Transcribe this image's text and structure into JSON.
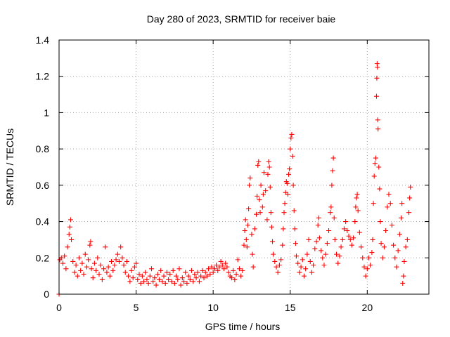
{
  "chart_data": {
    "type": "scatter",
    "title": "Day 280 of 2023, SRMTID for receiver baie",
    "xlabel": "GPS time / hours",
    "ylabel": "SRMTID / TECUs",
    "xlim": [
      0,
      24
    ],
    "ylim": [
      0,
      1.4
    ],
    "xticks": [
      0,
      5,
      10,
      15,
      20
    ],
    "xtick_labels": [
      "0",
      "5",
      "10",
      "15",
      "20"
    ],
    "yticks": [
      0,
      0.2,
      0.4,
      0.6,
      0.8,
      1.0,
      1.2,
      1.4
    ],
    "ytick_labels": [
      "0",
      "0.2",
      "0.4",
      "0.6",
      "0.8",
      "1",
      "1.2",
      "1.4"
    ],
    "grid": true,
    "marker": "+",
    "series_color": "#ff0000",
    "series": [
      {
        "name": "SRMTID",
        "points": [
          [
            0.0,
            0.0
          ],
          [
            0.05,
            0.19
          ],
          [
            0.15,
            0.2
          ],
          [
            0.25,
            0.17
          ],
          [
            0.35,
            0.21
          ],
          [
            0.45,
            0.14
          ],
          [
            0.55,
            0.26
          ],
          [
            0.65,
            0.33
          ],
          [
            0.7,
            0.37
          ],
          [
            0.75,
            0.41
          ],
          [
            0.8,
            0.3
          ],
          [
            0.9,
            0.18
          ],
          [
            1.0,
            0.12
          ],
          [
            1.1,
            0.16
          ],
          [
            1.2,
            0.1
          ],
          [
            1.3,
            0.2
          ],
          [
            1.4,
            0.13
          ],
          [
            1.5,
            0.17
          ],
          [
            1.6,
            0.11
          ],
          [
            1.7,
            0.22
          ],
          [
            1.8,
            0.15
          ],
          [
            1.9,
            0.19
          ],
          [
            2.0,
            0.27
          ],
          [
            2.05,
            0.29
          ],
          [
            2.1,
            0.14
          ],
          [
            2.2,
            0.09
          ],
          [
            2.3,
            0.17
          ],
          [
            2.4,
            0.13
          ],
          [
            2.5,
            0.2
          ],
          [
            2.6,
            0.11
          ],
          [
            2.7,
            0.16
          ],
          [
            2.8,
            0.08
          ],
          [
            2.9,
            0.14
          ],
          [
            3.0,
            0.26
          ],
          [
            3.1,
            0.12
          ],
          [
            3.2,
            0.15
          ],
          [
            3.3,
            0.1
          ],
          [
            3.4,
            0.18
          ],
          [
            3.5,
            0.13
          ],
          [
            3.6,
            0.16
          ],
          [
            3.7,
            0.19
          ],
          [
            3.8,
            0.22
          ],
          [
            3.9,
            0.18
          ],
          [
            4.0,
            0.26
          ],
          [
            4.1,
            0.2
          ],
          [
            4.2,
            0.16
          ],
          [
            4.3,
            0.12
          ],
          [
            4.4,
            0.18
          ],
          [
            4.5,
            0.1
          ],
          [
            4.6,
            0.07
          ],
          [
            4.7,
            0.13
          ],
          [
            4.8,
            0.09
          ],
          [
            4.9,
            0.15
          ],
          [
            5.0,
            0.17
          ],
          [
            5.1,
            0.08
          ],
          [
            5.2,
            0.11
          ],
          [
            5.3,
            0.06
          ],
          [
            5.4,
            0.1
          ],
          [
            5.5,
            0.07
          ],
          [
            5.6,
            0.12
          ],
          [
            5.7,
            0.08
          ],
          [
            5.8,
            0.06
          ],
          [
            5.9,
            0.1
          ],
          [
            6.0,
            0.14
          ],
          [
            6.1,
            0.07
          ],
          [
            6.2,
            0.09
          ],
          [
            6.3,
            0.05
          ],
          [
            6.4,
            0.11
          ],
          [
            6.5,
            0.08
          ],
          [
            6.6,
            0.13
          ],
          [
            6.7,
            0.07
          ],
          [
            6.8,
            0.1
          ],
          [
            6.9,
            0.06
          ],
          [
            7.0,
            0.12
          ],
          [
            7.1,
            0.08
          ],
          [
            7.2,
            0.11
          ],
          [
            7.3,
            0.07
          ],
          [
            7.4,
            0.13
          ],
          [
            7.5,
            0.06
          ],
          [
            7.6,
            0.1
          ],
          [
            7.7,
            0.08
          ],
          [
            7.8,
            0.14
          ],
          [
            7.9,
            0.05
          ],
          [
            8.0,
            0.09
          ],
          [
            8.1,
            0.07
          ],
          [
            8.2,
            0.12
          ],
          [
            8.3,
            0.06
          ],
          [
            8.4,
            0.1
          ],
          [
            8.5,
            0.08
          ],
          [
            8.6,
            0.13
          ],
          [
            8.7,
            0.07
          ],
          [
            8.8,
            0.11
          ],
          [
            8.9,
            0.09
          ],
          [
            9.0,
            0.12
          ],
          [
            9.1,
            0.07
          ],
          [
            9.2,
            0.1
          ],
          [
            9.3,
            0.13
          ],
          [
            9.4,
            0.09
          ],
          [
            9.5,
            0.12
          ],
          [
            9.6,
            0.1
          ],
          [
            9.7,
            0.14
          ],
          [
            9.8,
            0.11
          ],
          [
            9.9,
            0.15
          ],
          [
            10.0,
            0.12
          ],
          [
            10.1,
            0.14
          ],
          [
            10.2,
            0.16
          ],
          [
            10.3,
            0.13
          ],
          [
            10.4,
            0.15
          ],
          [
            10.5,
            0.18
          ],
          [
            10.6,
            0.16
          ],
          [
            10.7,
            0.14
          ],
          [
            10.8,
            0.17
          ],
          [
            10.9,
            0.15
          ],
          [
            11.0,
            0.12
          ],
          [
            11.1,
            0.1
          ],
          [
            11.2,
            0.09
          ],
          [
            11.3,
            0.13
          ],
          [
            11.4,
            0.08
          ],
          [
            11.5,
            0.11
          ],
          [
            11.6,
            0.19
          ],
          [
            11.7,
            0.14
          ],
          [
            11.8,
            0.1
          ],
          [
            11.9,
            0.13
          ],
          [
            12.0,
            0.27
          ],
          [
            12.05,
            0.35
          ],
          [
            12.1,
            0.41
          ],
          [
            12.15,
            0.3
          ],
          [
            12.2,
            0.26
          ],
          [
            12.25,
            0.38
          ],
          [
            12.3,
            0.47
          ],
          [
            12.35,
            0.6
          ],
          [
            12.4,
            0.64
          ],
          [
            12.5,
            0.33
          ],
          [
            12.55,
            0.22
          ],
          [
            12.6,
            0.15
          ],
          [
            12.7,
            0.36
          ],
          [
            12.8,
            0.44
          ],
          [
            12.85,
            0.54
          ],
          [
            12.9,
            0.71
          ],
          [
            12.95,
            0.73
          ],
          [
            13.0,
            0.52
          ],
          [
            13.05,
            0.45
          ],
          [
            13.1,
            0.6
          ],
          [
            13.2,
            0.48
          ],
          [
            13.25,
            0.55
          ],
          [
            13.3,
            0.67
          ],
          [
            13.4,
            0.57
          ],
          [
            13.5,
            0.41
          ],
          [
            13.55,
            0.66
          ],
          [
            13.6,
            0.73
          ],
          [
            13.65,
            0.7
          ],
          [
            13.7,
            0.59
          ],
          [
            13.75,
            0.45
          ],
          [
            13.8,
            0.37
          ],
          [
            13.85,
            0.29
          ],
          [
            13.9,
            0.22
          ],
          [
            14.0,
            0.18
          ],
          [
            14.1,
            0.15
          ],
          [
            14.2,
            0.12
          ],
          [
            14.3,
            0.16
          ],
          [
            14.4,
            0.19
          ],
          [
            14.5,
            0.27
          ],
          [
            14.55,
            0.36
          ],
          [
            14.6,
            0.45
          ],
          [
            14.65,
            0.5
          ],
          [
            14.7,
            0.56
          ],
          [
            14.75,
            0.62
          ],
          [
            14.8,
            0.61
          ],
          [
            14.85,
            0.55
          ],
          [
            14.9,
            0.66
          ],
          [
            14.95,
            0.69
          ],
          [
            15.0,
            0.8
          ],
          [
            15.05,
            0.86
          ],
          [
            15.1,
            0.88
          ],
          [
            15.15,
            0.76
          ],
          [
            15.2,
            0.6
          ],
          [
            15.25,
            0.46
          ],
          [
            15.3,
            0.36
          ],
          [
            15.35,
            0.28
          ],
          [
            15.4,
            0.21
          ],
          [
            15.5,
            0.17
          ],
          [
            15.6,
            0.12
          ],
          [
            15.7,
            0.15
          ],
          [
            15.8,
            0.19
          ],
          [
            15.9,
            0.1
          ],
          [
            16.0,
            0.14
          ],
          [
            16.1,
            0.22
          ],
          [
            16.2,
            0.3
          ],
          [
            16.3,
            0.18
          ],
          [
            16.4,
            0.12
          ],
          [
            16.5,
            0.16
          ],
          [
            16.6,
            0.25
          ],
          [
            16.7,
            0.29
          ],
          [
            16.8,
            0.38
          ],
          [
            16.85,
            0.42
          ],
          [
            16.9,
            0.31
          ],
          [
            17.0,
            0.24
          ],
          [
            17.1,
            0.2
          ],
          [
            17.2,
            0.16
          ],
          [
            17.3,
            0.22
          ],
          [
            17.4,
            0.28
          ],
          [
            17.5,
            0.35
          ],
          [
            17.6,
            0.45
          ],
          [
            17.65,
            0.48
          ],
          [
            17.7,
            0.6
          ],
          [
            17.75,
            0.68
          ],
          [
            17.8,
            0.75
          ],
          [
            17.85,
            0.42
          ],
          [
            17.9,
            0.3
          ],
          [
            18.0,
            0.22
          ],
          [
            18.1,
            0.17
          ],
          [
            18.2,
            0.21
          ],
          [
            18.3,
            0.26
          ],
          [
            18.4,
            0.3
          ],
          [
            18.5,
            0.36
          ],
          [
            18.6,
            0.4
          ],
          [
            18.7,
            0.35
          ],
          [
            18.8,
            0.32
          ],
          [
            18.9,
            0.3
          ],
          [
            19.0,
            0.27
          ],
          [
            19.1,
            0.31
          ],
          [
            19.2,
            0.4
          ],
          [
            19.25,
            0.48
          ],
          [
            19.3,
            0.53
          ],
          [
            19.35,
            0.55
          ],
          [
            19.4,
            0.46
          ],
          [
            19.5,
            0.34
          ],
          [
            19.6,
            0.26
          ],
          [
            19.7,
            0.2
          ],
          [
            19.8,
            0.15
          ],
          [
            19.9,
            0.1
          ],
          [
            20.0,
            0.14
          ],
          [
            20.1,
            0.2
          ],
          [
            20.2,
            0.16
          ],
          [
            20.3,
            0.23
          ],
          [
            20.35,
            0.3
          ],
          [
            20.4,
            0.5
          ],
          [
            20.45,
            0.65
          ],
          [
            20.5,
            0.72
          ],
          [
            20.55,
            0.75
          ],
          [
            20.6,
            1.09
          ],
          [
            20.62,
            1.19
          ],
          [
            20.64,
            1.27
          ],
          [
            20.66,
            1.25
          ],
          [
            20.68,
            0.96
          ],
          [
            20.7,
            0.91
          ],
          [
            20.75,
            0.7
          ],
          [
            20.8,
            0.58
          ],
          [
            20.85,
            0.4
          ],
          [
            20.9,
            0.28
          ],
          [
            21.0,
            0.2
          ],
          [
            21.1,
            0.26
          ],
          [
            21.2,
            0.35
          ],
          [
            21.3,
            0.48
          ],
          [
            21.4,
            0.55
          ],
          [
            21.5,
            0.5
          ],
          [
            21.6,
            0.38
          ],
          [
            21.7,
            0.27
          ],
          [
            21.8,
            0.2
          ],
          [
            21.9,
            0.15
          ],
          [
            22.0,
            0.24
          ],
          [
            22.1,
            0.33
          ],
          [
            22.2,
            0.42
          ],
          [
            22.25,
            0.5
          ],
          [
            22.3,
            0.06
          ],
          [
            22.35,
            0.1
          ],
          [
            22.4,
            0.18
          ],
          [
            22.5,
            0.26
          ],
          [
            22.6,
            0.3
          ],
          [
            22.7,
            0.45
          ],
          [
            22.75,
            0.53
          ],
          [
            22.8,
            0.59
          ]
        ]
      }
    ]
  }
}
